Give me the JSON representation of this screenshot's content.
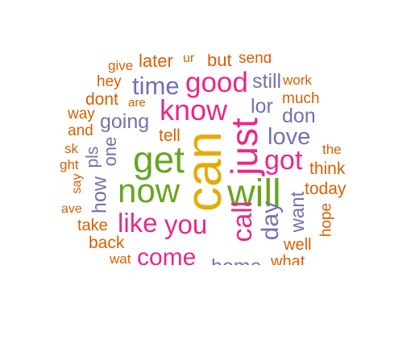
{
  "colors": {
    "orange": "#d95f02",
    "purple": "#7570b3",
    "pink": "#e7298a",
    "green": "#66a61e",
    "gold": "#e6ab02",
    "background": "#ffffff"
  },
  "words": {
    "can": "can",
    "just": "just",
    "will": "will",
    "get": "get",
    "now": "now",
    "got": "got",
    "know": "know",
    "good": "good",
    "time": "time",
    "like": "like",
    "you": "you",
    "come": "come",
    "call": "call",
    "day": "day",
    "going": "going",
    "love": "love",
    "lor": "lor",
    "don": "don",
    "still": "still",
    "want": "want",
    "one": "one",
    "how": "how",
    "today": "today",
    "think": "think",
    "home": "home",
    "what": "what",
    "well": "well",
    "hope": "hope",
    "the": "the",
    "work": "work",
    "much": "much",
    "tell": "tell",
    "pls": "pls",
    "back": "back",
    "take": "take",
    "wat": "wat",
    "say": "say",
    "have": "ave",
    "and": "and",
    "ask": "sk",
    "night": "ght",
    "way": "way",
    "dont": "dont",
    "are": "are",
    "hey": "hey",
    "give": "give",
    "later": "later",
    "but": "but",
    "send": "send",
    "ur": "ur"
  }
}
